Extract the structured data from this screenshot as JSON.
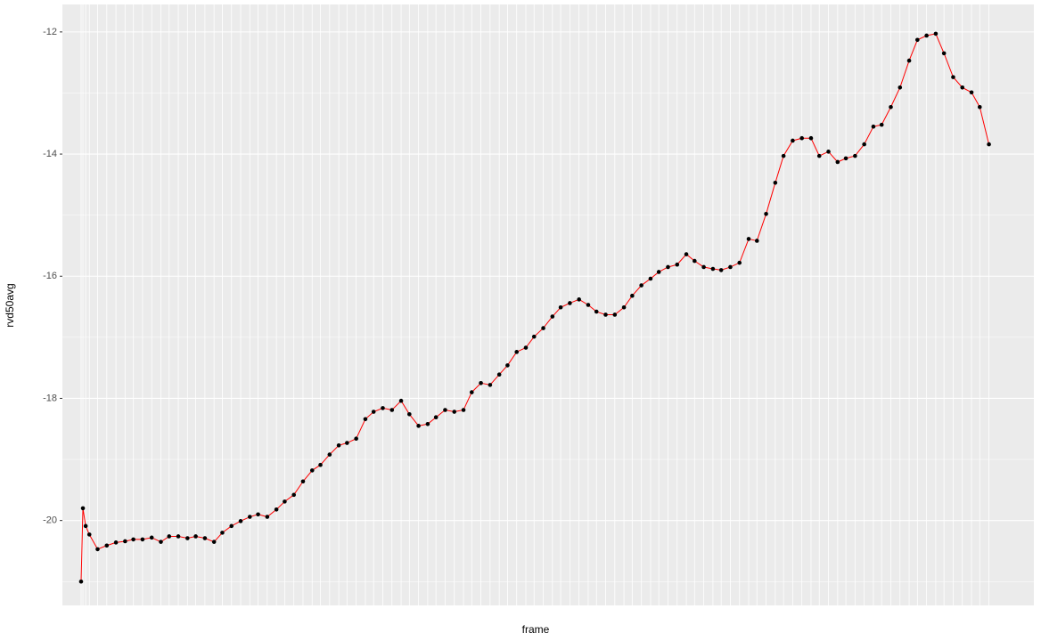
{
  "chart_data": {
    "type": "line",
    "x_label": "frame",
    "y_label": "rvd50avg",
    "x": [
      10,
      12,
      15,
      19,
      28,
      38,
      48,
      58,
      67,
      77,
      87,
      97,
      106,
      116,
      126,
      135,
      145,
      155,
      164,
      174,
      184,
      194,
      203,
      213,
      223,
      232,
      242,
      252,
      262,
      271,
      281,
      291,
      300,
      310,
      320,
      329,
      339,
      349,
      359,
      368,
      378,
      388,
      397,
      407,
      417,
      427,
      436,
      446,
      456,
      466,
      475,
      485,
      495,
      504,
      514,
      524,
      533,
      543,
      553,
      563,
      572,
      582,
      592,
      602,
      611,
      621,
      631,
      640,
      650,
      660,
      670,
      679,
      689,
      699,
      708,
      718,
      728,
      738,
      747,
      757,
      767,
      776,
      786,
      796,
      806,
      815,
      825,
      835,
      844,
      854,
      864,
      874,
      883,
      893,
      903,
      913,
      922,
      932,
      942,
      951,
      961,
      971,
      981,
      990,
      1000
    ],
    "series": [
      {
        "color": "#ff0000",
        "point_color": "#000000",
        "values": [
          -21.0,
          -19.8,
          -20.09,
          -20.23,
          -20.47,
          -20.41,
          -20.36,
          -20.34,
          -20.31,
          -20.31,
          -20.28,
          -20.35,
          -20.26,
          -20.26,
          -20.29,
          -20.26,
          -20.29,
          -20.35,
          -20.2,
          -20.09,
          -20.01,
          -19.94,
          -19.9,
          -19.94,
          -19.82,
          -19.69,
          -19.58,
          -19.36,
          -19.18,
          -19.09,
          -18.92,
          -18.77,
          -18.73,
          -18.66,
          -18.34,
          -18.22,
          -18.16,
          -18.19,
          -18.04,
          -18.26,
          -18.45,
          -18.42,
          -18.31,
          -18.19,
          -18.22,
          -18.19,
          -17.9,
          -17.75,
          -17.78,
          -17.61,
          -17.46,
          -17.24,
          -17.17,
          -16.99,
          -16.85,
          -16.66,
          -16.51,
          -16.44,
          -16.38,
          -16.47,
          -16.58,
          -16.63,
          -16.63,
          -16.51,
          -16.32,
          -16.15,
          -16.04,
          -15.93,
          -15.85,
          -15.81,
          -15.64,
          -15.75,
          -15.85,
          -15.88,
          -15.9,
          -15.85,
          -15.78,
          -15.39,
          -15.42,
          -14.98,
          -14.47,
          -14.03,
          -13.78,
          -13.74,
          -13.74,
          -14.03,
          -13.96,
          -14.13,
          -14.07,
          -14.03,
          -13.84,
          -13.55,
          -13.52,
          -13.23,
          -12.91,
          -12.47,
          -12.13,
          -12.06,
          -12.03,
          -12.35,
          -12.74,
          -12.91,
          -12.99,
          -13.23,
          -13.84
        ]
      }
    ],
    "xlim": [
      -10.4,
      1049
    ],
    "ylim": [
      -21.39,
      -11.55
    ],
    "yticks": [
      -20,
      -18,
      -16,
      -14,
      -12
    ],
    "grid": true
  }
}
